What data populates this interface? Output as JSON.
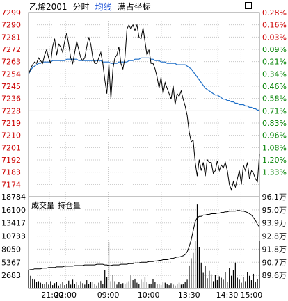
{
  "header": {
    "symbol": "乙烯2001",
    "tab_intraday": "分时",
    "tab_avgline": "均线",
    "tab_fullcoord": "满占坐标"
  },
  "colors": {
    "price_axis": "#cc0000",
    "pct_up": "#cc0000",
    "pct_down": "#008000",
    "price_line": "#000000",
    "avg_line": "#1e6fc8",
    "grid": "#c8c8c8",
    "active_tab": "#1a4fd6"
  },
  "chart_data": [
    {
      "type": "line",
      "panel": "price",
      "ylim": [
        7165,
        7299
      ],
      "y_ticks": [
        "7299",
        "7290",
        "7281",
        "7272",
        "7263",
        "7254",
        "7245",
        "7236",
        "7228",
        "7219",
        "7210",
        "7201",
        "7192",
        "7183",
        "7174"
      ],
      "pct_ticks": [
        "0.28%",
        "0.16%",
        "0.03%",
        "0.09%",
        "0.21%",
        "0.34%",
        "0.46%",
        "0.58%",
        "0.71%",
        "0.83%",
        "0.96%",
        "1.08%",
        "1.20%",
        "1.33%"
      ],
      "pct_up_count": 3,
      "series": [
        {
          "values": [
            7254,
            7258,
            7261,
            7263,
            7262,
            7266,
            7264,
            7262,
            7268,
            7272,
            7266,
            7262,
            7274,
            7280,
            7268,
            7276,
            7274,
            7270,
            7278,
            7284,
            7276,
            7266,
            7262,
            7270,
            7278,
            7272,
            7266,
            7264,
            7266,
            7274,
            7281,
            7276,
            7266,
            7262,
            7262,
            7266,
            7270,
            7262,
            7250,
            7240,
            7262,
            7236,
            7258,
            7266,
            7268,
            7274,
            7262,
            7258,
            7266,
            7287,
            7290,
            7287,
            7290,
            7286,
            7290,
            7281,
            7280,
            7288,
            7278,
            7268,
            7272,
            7262,
            7262,
            7258,
            7252,
            7244,
            7252,
            7240,
            7248,
            7244,
            7240,
            7236,
            7246,
            7232,
            7240,
            7238,
            7242,
            7236,
            7231,
            7224,
            7212,
            7205,
            7206,
            7190,
            7180,
            7192,
            7184,
            7190,
            7180,
            7192,
            7190,
            7190,
            7182,
            7184,
            7191,
            7184,
            7188,
            7186,
            7190,
            7184,
            7174,
            7170,
            7176,
            7172,
            7178,
            7184,
            7174,
            7188,
            7184,
            7190,
            7178,
            7184,
            7182,
            7178,
            7176,
            7196
          ]
        },
        {
          "values": [
            7254,
            7257,
            7259,
            7260,
            7261,
            7262,
            7262,
            7263,
            7263,
            7263,
            7263,
            7263,
            7264,
            7264,
            7264,
            7264,
            7264,
            7264,
            7264,
            7265,
            7265,
            7265,
            7265,
            7265,
            7265,
            7264,
            7264,
            7264,
            7264,
            7264,
            7264,
            7264,
            7264,
            7264,
            7264,
            7264,
            7264,
            7263,
            7263,
            7263,
            7263,
            7262,
            7262,
            7262,
            7262,
            7263,
            7263,
            7263,
            7263,
            7263,
            7264,
            7264,
            7264,
            7265,
            7265,
            7265,
            7266,
            7266,
            7266,
            7266,
            7266,
            7265,
            7265,
            7264,
            7264,
            7264,
            7263,
            7263,
            7263,
            7262,
            7262,
            7262,
            7262,
            7262,
            7261,
            7261,
            7261,
            7261,
            7261,
            7260,
            7259,
            7258,
            7256,
            7254,
            7252,
            7250,
            7248,
            7246,
            7244,
            7243,
            7242,
            7241,
            7240,
            7239,
            7239,
            7238,
            7237,
            7236,
            7236,
            7235,
            7235,
            7234,
            7234,
            7233,
            7233,
            7232,
            7232,
            7232,
            7231,
            7231,
            7230,
            7230,
            7229,
            7229,
            7228,
            7228
          ]
        }
      ]
    },
    {
      "type": "bar",
      "panel": "volume",
      "title": "成交量",
      "title2": "持仓量",
      "ylim": [
        0,
        18784
      ],
      "y_ticks": [
        "18784",
        "16100",
        "13417",
        "10733",
        "8050",
        "5367",
        "2683"
      ],
      "oi_ticks": [
        "96.1万",
        "95.0万",
        "93.9万",
        "92.8万",
        "91.8万",
        "90.7万",
        "89.6万"
      ],
      "x_ticks": [
        "21:00",
        "22:00",
        "09:00",
        "10:00",
        "13:30",
        "14:30",
        "15:00"
      ],
      "volume": [
        3800,
        2600,
        2000,
        1800,
        1300,
        1500,
        1200,
        1000,
        900,
        1300,
        800,
        1500,
        700,
        1100,
        1400,
        600,
        900,
        1300,
        700,
        1000,
        1600,
        800,
        1800,
        900,
        1300,
        700,
        1500,
        1100,
        800,
        1700,
        900,
        1300,
        1400,
        1000,
        600,
        1200,
        1600,
        900,
        3800,
        2400,
        9500,
        1500,
        2800,
        1500,
        800,
        1300,
        900,
        1100,
        1000,
        1200,
        1500,
        2700,
        1700,
        2000,
        1200,
        900,
        1800,
        1300,
        2400,
        1400,
        900,
        1000,
        1900,
        1400,
        900,
        1000,
        700,
        1300,
        1200,
        900,
        700,
        1100,
        800,
        600,
        1000,
        1200,
        800,
        900,
        1400,
        1800,
        4600,
        6200,
        7300,
        9800,
        17200,
        8400,
        5300,
        3200,
        4700,
        2100,
        3600,
        2900,
        1500,
        2800,
        1700,
        2500,
        2200,
        1800,
        3300,
        1400,
        4200,
        2600,
        3700,
        5300,
        2200,
        1800,
        1200,
        2300,
        1500,
        3400,
        2600,
        1700,
        3000,
        1400,
        1900,
        9800
      ],
      "open_interest": [
        90.5,
        90.55,
        90.55,
        90.6,
        90.6,
        90.6,
        90.6,
        90.65,
        90.65,
        90.65,
        90.7,
        90.7,
        90.7,
        90.7,
        90.75,
        90.75,
        90.75,
        90.75,
        90.8,
        90.8,
        90.8,
        90.8,
        90.8,
        90.85,
        90.85,
        90.85,
        90.85,
        90.85,
        90.9,
        90.9,
        90.9,
        90.9,
        90.9,
        90.9,
        90.95,
        90.95,
        90.95,
        90.95,
        90.9,
        90.9,
        90.85,
        90.85,
        90.9,
        90.9,
        90.9,
        90.9,
        90.95,
        90.95,
        90.95,
        90.95,
        91.0,
        91.0,
        91.0,
        91.05,
        91.05,
        91.05,
        91.1,
        91.1,
        91.1,
        91.1,
        91.15,
        91.15,
        91.15,
        91.2,
        91.2,
        91.25,
        91.25,
        91.3,
        91.3,
        91.3,
        91.35,
        91.4,
        91.4,
        91.45,
        91.5,
        91.5,
        91.55,
        91.6,
        91.7,
        91.9,
        92.3,
        92.8,
        93.5,
        94.2,
        94.5,
        94.6,
        94.6,
        94.7,
        94.7,
        94.75,
        94.75,
        94.8,
        94.8,
        94.8,
        94.85,
        94.85,
        94.9,
        94.9,
        94.95,
        94.95,
        95.0,
        95.0,
        95.0,
        95.0,
        95.05,
        95.05,
        95.0,
        95.0,
        94.95,
        94.9,
        94.8,
        94.7,
        94.5,
        94.3,
        94.0,
        93.8
      ],
      "oi_lim": [
        89.1,
        96.1
      ]
    }
  ]
}
